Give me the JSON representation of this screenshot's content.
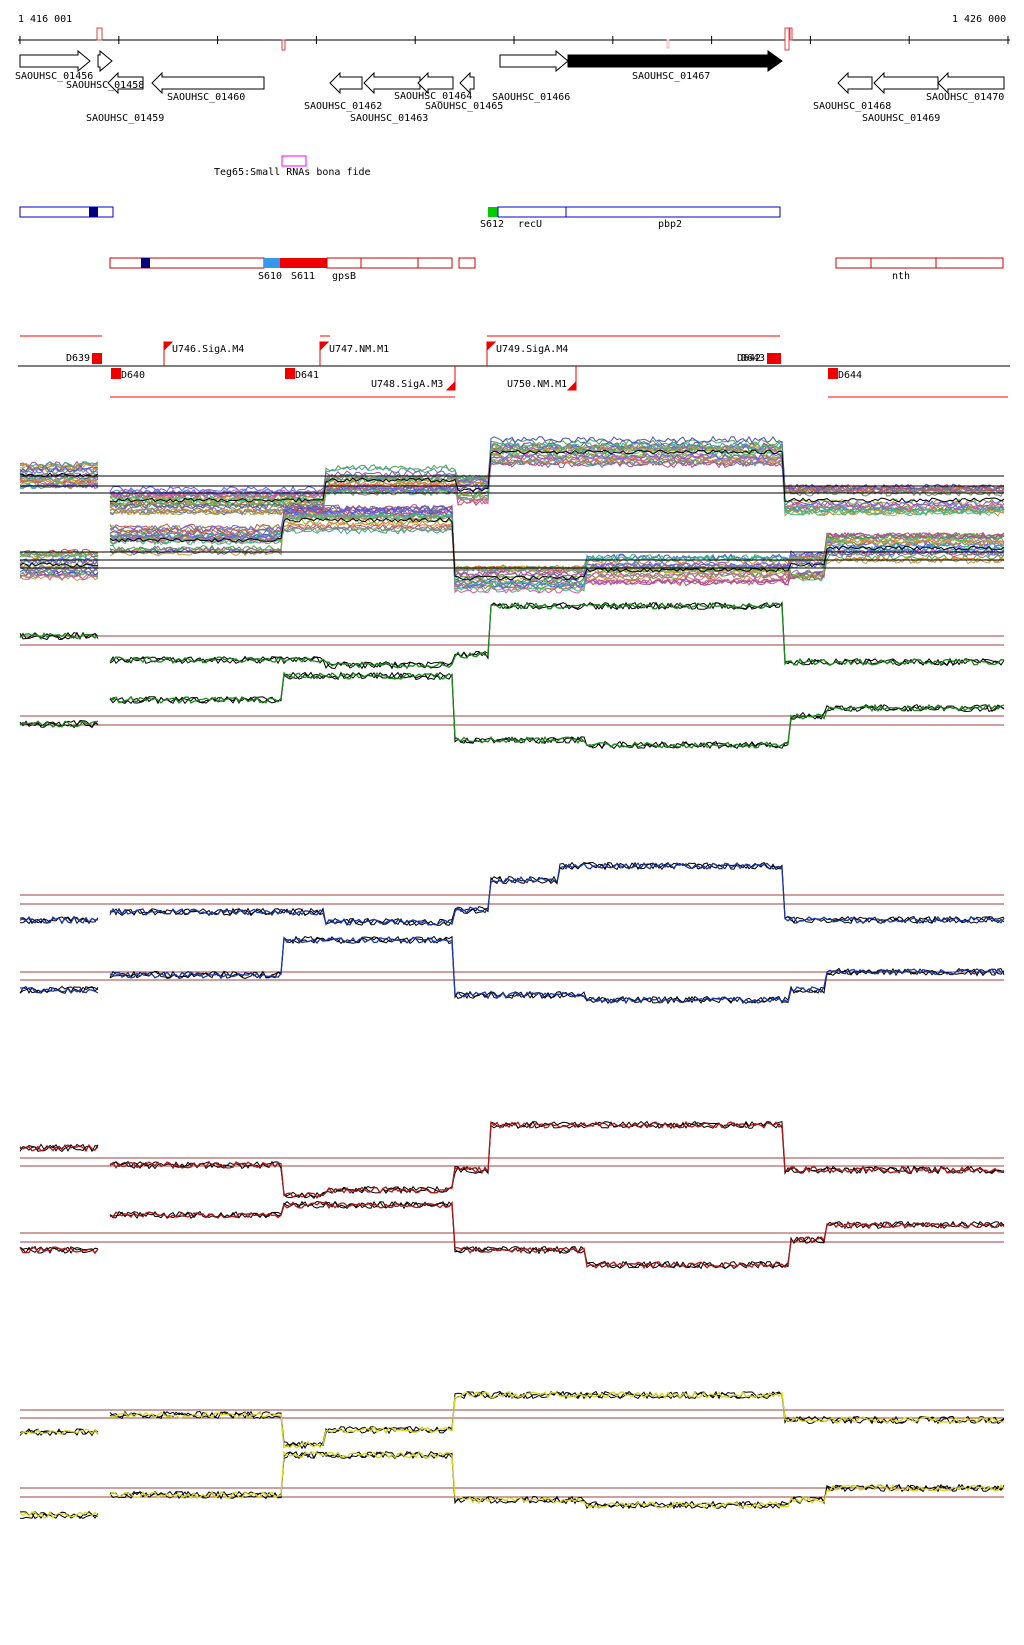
{
  "coords": {
    "start": "1 416 001",
    "end": "1 426 000"
  },
  "genes": {
    "g1456": "SAOUHSC_01456",
    "g1458": "SAOUHSC_01458",
    "g1459": "SAOUHSC_01459",
    "g1460": "SAOUHSC_01460",
    "g1462": "SAOUHSC_01462",
    "g1463": "SAOUHSC_01463",
    "g1464": "SAOUHSC_01464",
    "g1465": "SAOUHSC_01465",
    "g1466": "SAOUHSC_01466",
    "g1467": "SAOUHSC_01467",
    "g1468": "SAOUHSC_01468",
    "g1469": "SAOUHSC_01469",
    "g1470": "SAOUHSC_01470"
  },
  "srna": {
    "label": "Teg65:Small RNAs bona fide"
  },
  "segments_plus": {
    "s612": "S612",
    "recU": "recU",
    "pbp2": "pbp2"
  },
  "segments_minus": {
    "s610": "S610",
    "s611": "S611",
    "gpsB": "gpsB",
    "nth": "nth"
  },
  "promoters": {
    "d639": "D639",
    "d640": "D640",
    "d641": "D641",
    "d642": "D642",
    "d643": "D643",
    "d644": "D644",
    "u746": "U746.SigA.M4",
    "u747": "U747.NM.M1",
    "u748": "U748.SigA.M3",
    "u749": "U749.SigA.M4",
    "u750": "U750.NM.M1"
  },
  "colors": {
    "gene_outline": "#000000",
    "gene_highlight": "#000000",
    "promoter": "#ff0000",
    "plus_segment": "#0000cc",
    "minus_segment": "#cc0000",
    "srna": "#ff00ff",
    "track_green": "#1a8a1a",
    "track_blue": "#1a3aaa",
    "track_red": "#b01818",
    "track_yellow": "#d8d820",
    "threshold": "#a04040"
  }
}
